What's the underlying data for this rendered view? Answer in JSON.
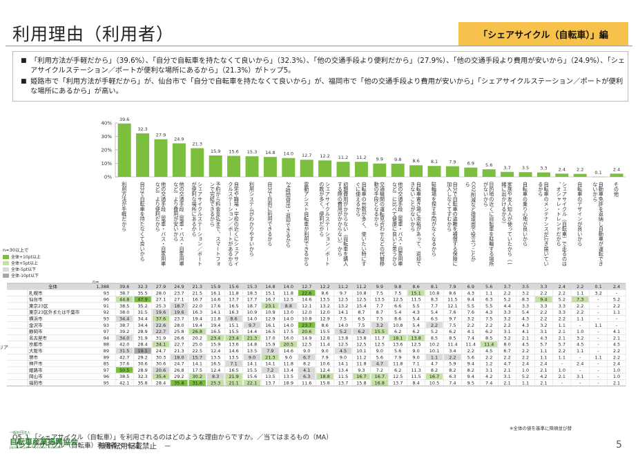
{
  "page": {
    "title": "利用理由（利用者）",
    "tag": "「シェアサイクル（自転車）」編",
    "summary": [
      "「利用方法が手軽だから」（39.6%）、「自分で自転車を持たなくて良いから」（32.3%）、「他の交通手段より便利だから」（27.9%）、「他の交通手段より費用が安いから」（24.9%）、「シェアサイクルステーション／ポートが便利な場所にあるから」（21.3%）がトップ5。",
      "姫路市で「利用方法が手軽だから」が、仙台市で「自分で自転車を持たなくて良いから」が、福岡市で「他の交通手段より費用が安いから」「シェアサイクルステーション／ポートが便利な場所にあるから」が高い。"
    ],
    "question": "Q5_1 「シェアサイクル（自転車）」を利用されるのはどのような理由からですか。／当てはまるもの（MA）",
    "base": "【シェアサイクル（自転車）利用者ベース】",
    "footnote": "※全体の値を基準に降順並び替",
    "org_small": "一般社団法人",
    "org_name": "自転車産業振興協会",
    "org_sub": "Japan Bicycle Promotion Institute",
    "reproduction": "－　無断転用転載禁止　－",
    "page_number": "5",
    "n_label": "n=",
    "area_label": "リア"
  },
  "legend": {
    "title": "n=30以上で",
    "items": [
      {
        "label": "全体+10pt以上",
        "color": "#7cbf3f"
      },
      {
        "label": "全体+5pt以上",
        "color": "#c5e0a5"
      },
      {
        "label": "全体-5pt以下",
        "color": "#d9d9d9"
      },
      {
        "label": "全体-10pt以下",
        "color": "#a6a6a6"
      }
    ]
  },
  "colors": {
    "bar": "#7cbf3f",
    "high10": "#7cbf3f",
    "high5": "#c5e0a5",
    "low5": "#d9d9d9",
    "low10": "#a6a6a6",
    "tag": "#f6c24c"
  },
  "chart_data": {
    "type": "bar",
    "ylim": [
      0,
      40
    ],
    "yticks": [
      "0%",
      "10%",
      "20%",
      "30%",
      "40%"
    ],
    "categories": [
      "利用方法が手軽だから",
      "自分で自転車を持たなくて良いから",
      "他の交通手段（電車・バス・自家用車など）より便利だから",
      "他の交通手段（電車・バス・自家用車など）より費用が安いから",
      "シェアサイクルステーション／ポートが便利な場所にあるから",
      "予約から料金支払まで、スマートフォンで完結できるから",
      "自宅や職場・学校の近くにシェアサイクルステーション／ポートがあるから",
      "利用システムがわかりやすいから",
      "自分で自由に利用できるから",
      "24時間貸出・返却できるから",
      "電動アシスト自転車が利用できるから",
      "シェアサイクルステーション／ポートの数が多く、便利だから",
      "初期費用がかからない（自転車を購入する際の費用がかからない）から",
      "自転車の台数が多く、使いたい時にすぐに使えるから",
      "交通機関の運転見合わせなどの代替移動の手段となるから",
      "他の交通手段（電車・バス・自家用車など）に比べて健康に良いと思うから",
      "自転車置き場に余裕があって、返却できないことがないから",
      "駐輪場を探す手間がなくなるから",
      "自分で自転車の盗難を補償する保険に加入しなくてすむから",
      "CO2削減など環境面で役立つことから",
      "目的地の近くに自転車を駐輪する場所がないから",
      "家族や友人知人が使っていたから（一緒に出かけるから）",
      "自転車の乗り心地が良いから",
      "自転車のメンテナンスが行き届いているから",
      "シェアサイクル（自転車）で走るのは、オシャレ・トレンドだから",
      "自転車のデザインが良いから",
      "自動車免許を返納し自動車が運転できないから",
      "その他"
    ],
    "values": [
      39.6,
      32.3,
      27.9,
      24.9,
      21.3,
      15.9,
      15.6,
      15.3,
      14.8,
      14.0,
      12.7,
      12.2,
      11.2,
      11.2,
      9.9,
      9.8,
      8.6,
      8.1,
      7.9,
      6.9,
      5.6,
      3.7,
      3.5,
      3.3,
      2.4,
      2.2,
      0.1,
      2.4
    ],
    "table": {
      "rows": [
        {
          "label": "全体",
          "n": "1,388",
          "values": [
            "39.6",
            "32.3",
            "27.9",
            "24.9",
            "21.3",
            "15.9",
            "15.6",
            "15.3",
            "14.8",
            "14.0",
            "12.7",
            "12.2",
            "11.2",
            "11.2",
            "9.9",
            "9.8",
            "8.6",
            "8.1",
            "7.9",
            "6.9",
            "5.6",
            "3.7",
            "3.5",
            "3.3",
            "2.4",
            "2.2",
            "0.1",
            "2.4"
          ],
          "hl": []
        },
        {
          "label": "札幌市",
          "n": "93",
          "values": [
            "38.7",
            "35.5",
            "28.0",
            "23.7",
            "21.5",
            "16.1",
            "11.8",
            "18.3",
            "15.1",
            "11.8",
            "22.6",
            "8.6",
            "9.7",
            "10.8",
            "7.5",
            "7.5",
            "15.1",
            "10.8",
            "8.6",
            "4.3",
            "1.1",
            "2.2",
            "3.2",
            "2.2",
            "2.2",
            "1.1",
            "3.2",
            "-"
          ],
          "hl": [
            [
              10,
              "high10"
            ],
            [
              16,
              "high5"
            ]
          ]
        },
        {
          "label": "仙台市",
          "n": "96",
          "values": [
            "44.8",
            "47.9",
            "27.1",
            "27.1",
            "16.7",
            "14.6",
            "17.7",
            "17.7",
            "16.7",
            "12.5",
            "14.6",
            "13.5",
            "12.5",
            "12.5",
            "13.5",
            "12.5",
            "11.5",
            "8.3",
            "11.5",
            "9.4",
            "6.3",
            "5.2",
            "8.3",
            "9.4",
            "5.2",
            "7.3",
            "-",
            "5.2"
          ],
          "hl": [
            [
              0,
              "high5"
            ],
            [
              1,
              "high10"
            ],
            [
              23,
              "high5"
            ],
            [
              25,
              "high5"
            ]
          ]
        },
        {
          "label": "東京23区",
          "n": "91",
          "values": [
            "38.5",
            "35.2",
            "25.3",
            "18.7",
            "22.0",
            "17.6",
            "16.5",
            "18.7",
            "23.1",
            "8.8",
            "12.1",
            "13.2",
            "13.2",
            "15.4",
            "7.7",
            "6.6",
            "5.5",
            "7.7",
            "12.1",
            "5.5",
            "5.5",
            "4.4",
            "3.3",
            "3.3",
            "3.3",
            "2.2",
            "-",
            "2.2"
          ],
          "hl": [
            [
              3,
              "low5"
            ],
            [
              8,
              "high5"
            ],
            [
              9,
              "low5"
            ]
          ]
        },
        {
          "label": "東京23区外または千葉市",
          "n": "92",
          "values": [
            "38.0",
            "31.5",
            "19.6",
            "19.6",
            "16.3",
            "14.1",
            "16.3",
            "10.9",
            "10.9",
            "13.0",
            "12.0",
            "12.0",
            "14.1",
            "8.7",
            "8.7",
            "5.4",
            "4.3",
            "5.4",
            "7.6",
            "7.6",
            "4.3",
            "3.3",
            "5.4",
            "2.2",
            "3.3",
            "2.2",
            "-",
            "1.1"
          ],
          "hl": [
            [
              2,
              "low5"
            ],
            [
              3,
              "low5"
            ]
          ]
        },
        {
          "label": "横浜市",
          "n": "93",
          "values": [
            "34.4",
            "34.4",
            "37.6",
            "23.7",
            "19.4",
            "11.8",
            "8.6",
            "14.0",
            "12.9",
            "14.0",
            "10.8",
            "12.9",
            "7.5",
            "6.5",
            "7.5",
            "8.6",
            "5.4",
            "6.5",
            "9.7",
            "3.2",
            "7.5",
            "3.2",
            "4.3",
            "2.2",
            "2.2",
            "1.1",
            "-",
            "-"
          ],
          "hl": [
            [
              0,
              "low5"
            ],
            [
              2,
              "high5"
            ],
            [
              6,
              "low5"
            ]
          ]
        },
        {
          "label": "金沢市",
          "n": "93",
          "values": [
            "38.7",
            "34.4",
            "22.6",
            "28.0",
            "19.4",
            "19.4",
            "15.1",
            "9.7",
            "16.1",
            "14.0",
            "23.7",
            "8.6",
            "14.0",
            "7.5",
            "3.2",
            "10.8",
            "5.4",
            "2.2",
            "7.5",
            "2.2",
            "2.2",
            "2.2",
            "4.3",
            "3.2",
            "1.1",
            "-",
            "1.1",
            "-"
          ],
          "hl": [
            [
              2,
              "low5"
            ],
            [
              7,
              "low5"
            ],
            [
              10,
              "high10"
            ],
            [
              14,
              "low5"
            ],
            [
              17,
              "low5"
            ]
          ]
        },
        {
          "label": "静岡市",
          "n": "97",
          "values": [
            "39.2",
            "28.9",
            "22.7",
            "25.8",
            "26.8",
            "16.5",
            "15.5",
            "14.4",
            "16.5",
            "17.5",
            "20.6",
            "15.5",
            "5.2",
            "6.2",
            "15.5",
            "6.2",
            "6.2",
            "5.2",
            "6.2",
            "4.1",
            "6.2",
            "3.1",
            "4.1",
            "3.1",
            "2.1",
            "1.0",
            "-",
            "4.1"
          ],
          "hl": [
            [
              2,
              "low5"
            ],
            [
              4,
              "high5"
            ],
            [
              10,
              "high5"
            ],
            [
              12,
              "low5"
            ],
            [
              13,
              "low5"
            ],
            [
              14,
              "high5"
            ]
          ]
        },
        {
          "label": "名古屋市",
          "n": "94",
          "values": [
            "34.0",
            "31.9",
            "31.9",
            "26.6",
            "20.2",
            "23.4",
            "23.4",
            "21.3",
            "17.0",
            "16.0",
            "14.9",
            "12.8",
            "13.8",
            "13.8",
            "11.7",
            "18.1",
            "13.8",
            "8.5",
            "8.5",
            "7.4",
            "8.5",
            "3.2",
            "2.1",
            "4.3",
            "2.1",
            "3.2",
            "-",
            "2.1"
          ],
          "hl": [
            [
              0,
              "low5"
            ],
            [
              5,
              "high5"
            ],
            [
              6,
              "high5"
            ],
            [
              7,
              "high5"
            ],
            [
              15,
              "high5"
            ],
            [
              16,
              "high5"
            ]
          ]
        },
        {
          "label": "京都市",
          "n": "88",
          "values": [
            "42.0",
            "28.4",
            "34.1",
            "22.7",
            "25.0",
            "15.9",
            "13.6",
            "14.8",
            "15.9",
            "20.5",
            "12.5",
            "11.4",
            "12.5",
            "12.5",
            "12.5",
            "13.6",
            "12.5",
            "10.2",
            "11.4",
            "11.4",
            "11.4",
            "8.0",
            "4.5",
            "5.7",
            "5.7",
            "4.5",
            "-",
            "4.5"
          ],
          "hl": [
            [
              2,
              "high5"
            ],
            [
              9,
              "high5"
            ],
            [
              20,
              "high5"
            ]
          ]
        },
        {
          "label": "大阪市",
          "n": "89",
          "values": [
            "31.5",
            "19.1",
            "24.7",
            "21.3",
            "22.5",
            "12.4",
            "14.6",
            "13.5",
            "7.9",
            "14.6",
            "9.0",
            "9.0",
            "4.5",
            "10.1",
            "9.0",
            "5.6",
            "9.0",
            "10.1",
            "3.4",
            "2.2",
            "4.5",
            "6.7",
            "2.2",
            "1.1",
            "2.2",
            "1.1",
            "-",
            "2.2"
          ],
          "hl": [
            [
              0,
              "low5"
            ],
            [
              1,
              "low10"
            ],
            [
              8,
              "low5"
            ],
            [
              12,
              "low5"
            ]
          ]
        },
        {
          "label": "堺市",
          "n": "89",
          "values": [
            "42.7",
            "29.2",
            "30.3",
            "18.0",
            "15.7",
            "13.5",
            "13.5",
            "9.0",
            "21.3",
            "9.0",
            "6.7",
            "7.9",
            "9.0",
            "11.2",
            "5.6",
            "7.9",
            "9.0",
            "1.1",
            "2.2",
            "5.6",
            "2.2",
            "2.2",
            "2.2",
            "1.1",
            "1.1",
            "-",
            "1.1",
            "2.2"
          ],
          "hl": [
            [
              3,
              "low5"
            ],
            [
              4,
              "low5"
            ],
            [
              7,
              "low5"
            ],
            [
              8,
              "high5"
            ],
            [
              10,
              "low5"
            ],
            [
              17,
              "low5"
            ],
            [
              18,
              "low5"
            ]
          ]
        },
        {
          "label": "神戸市",
          "n": "85",
          "values": [
            "37.6",
            "30.6",
            "30.6",
            "24.7",
            "14.1",
            "16.5",
            "7.1",
            "14.1",
            "14.1",
            "11.8",
            "8.2",
            "10.6",
            "14.1",
            "11.8",
            "4.7",
            "11.8",
            "7.1",
            "4.7",
            "5.9",
            "9.4",
            "1.2",
            "4.7",
            "2.4",
            "2.4",
            "-",
            "2.4",
            "-",
            "2.4"
          ],
          "hl": [
            [
              6,
              "low5"
            ],
            [
              14,
              "low5"
            ]
          ]
        },
        {
          "label": "姫路市",
          "n": "97",
          "values": [
            "50.5",
            "28.9",
            "20.6",
            "26.8",
            "17.5",
            "12.4",
            "16.5",
            "15.5",
            "7.2",
            "13.4",
            "4.1",
            "12.4",
            "13.4",
            "9.3",
            "7.2",
            "6.2",
            "11.3",
            "8.2",
            "8.2",
            "8.2",
            "3.1",
            "2.1",
            "1.0",
            "2.1",
            "1.0",
            "-",
            "-",
            "1.0"
          ],
          "hl": [
            [
              0,
              "high10"
            ],
            [
              2,
              "low5"
            ],
            [
              8,
              "low5"
            ],
            [
              10,
              "low5"
            ]
          ]
        },
        {
          "label": "岡山市",
          "n": "96",
          "values": [
            "38.5",
            "32.3",
            "35.4",
            "29.2",
            "30.2",
            "8.3",
            "21.9",
            "15.6",
            "13.5",
            "13.5",
            "6.3",
            "18.8",
            "11.5",
            "16.7",
            "16.7",
            "12.5",
            "11.5",
            "16.7",
            "6.3",
            "9.4",
            "4.2",
            "3.1",
            "5.2",
            "4.2",
            "2.1",
            "3.1",
            "-",
            "1.0"
          ],
          "hl": [
            [
              2,
              "high5"
            ],
            [
              4,
              "high5"
            ],
            [
              5,
              "low5"
            ],
            [
              6,
              "high5"
            ],
            [
              10,
              "low5"
            ],
            [
              11,
              "high5"
            ],
            [
              13,
              "high5"
            ],
            [
              14,
              "high5"
            ],
            [
              17,
              "high5"
            ]
          ]
        },
        {
          "label": "福岡市",
          "n": "95",
          "values": [
            "42.1",
            "35.8",
            "28.4",
            "35.8",
            "31.6",
            "25.3",
            "21.1",
            "22.1",
            "13.7",
            "18.9",
            "11.6",
            "15.8",
            "13.7",
            "15.8",
            "16.8",
            "13.7",
            "8.4",
            "10.5",
            "7.4",
            "9.5",
            "7.4",
            "2.1",
            "1.1",
            "2.1",
            "-",
            "-",
            "-",
            "2.1"
          ],
          "hl": [
            [
              3,
              "high10"
            ],
            [
              4,
              "high10"
            ],
            [
              5,
              "high5"
            ],
            [
              6,
              "high5"
            ],
            [
              7,
              "high5"
            ],
            [
              14,
              "high5"
            ]
          ]
        }
      ]
    }
  }
}
